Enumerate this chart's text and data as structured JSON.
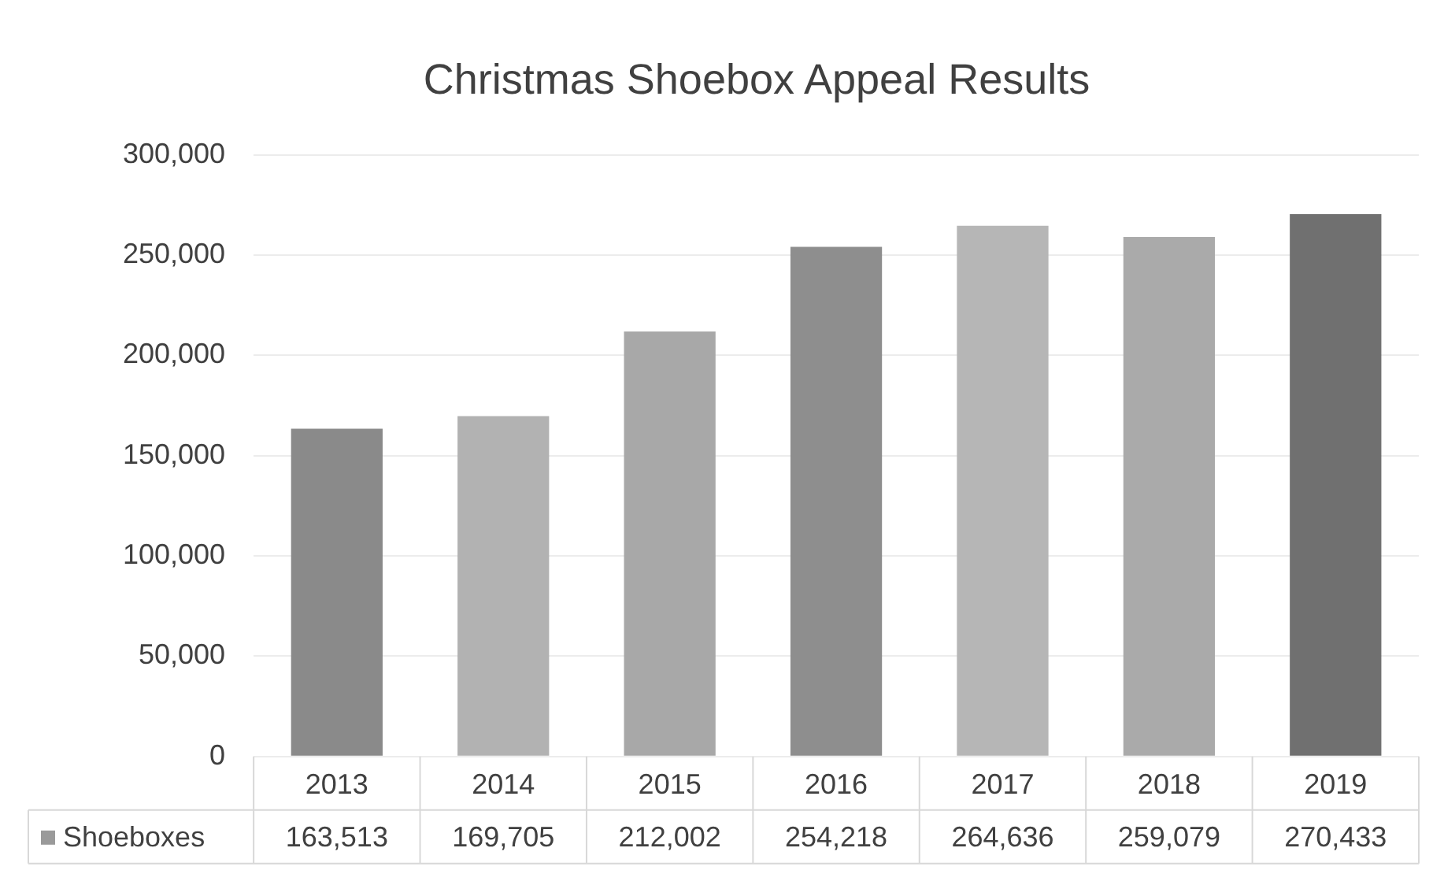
{
  "chart_data": {
    "type": "bar",
    "title": "Christmas Shoebox Appeal Results",
    "categories": [
      "2013",
      "2014",
      "2015",
      "2016",
      "2017",
      "2018",
      "2019"
    ],
    "series": [
      {
        "name": "Shoeboxes",
        "color": "#9a9a9a",
        "colors": [
          "#8a8a8a",
          "#b2b2b2",
          "#a8a8a8",
          "#8e8e8e",
          "#b6b6b6",
          "#aaaaaa",
          "#707070"
        ],
        "values": [
          163513,
          169705,
          212002,
          254218,
          264636,
          259079,
          270433
        ],
        "value_labels": [
          "163,513",
          "169,705",
          "212,002",
          "254,218",
          "264,636",
          "259,079",
          "270,433"
        ]
      }
    ],
    "ylim": [
      0,
      300000
    ],
    "yticks": [
      0,
      {
        "value": 50000,
        "label": "50,000"
      },
      {
        "value": 100000,
        "label": "100,000"
      },
      {
        "value": 150000,
        "label": "150,000"
      },
      {
        "value": 200000,
        "label": "200,000"
      },
      {
        "value": 250000,
        "label": "250,000"
      },
      {
        "value": 300000,
        "label": "300,000"
      }
    ],
    "grid": "y",
    "legend": "bottom"
  }
}
